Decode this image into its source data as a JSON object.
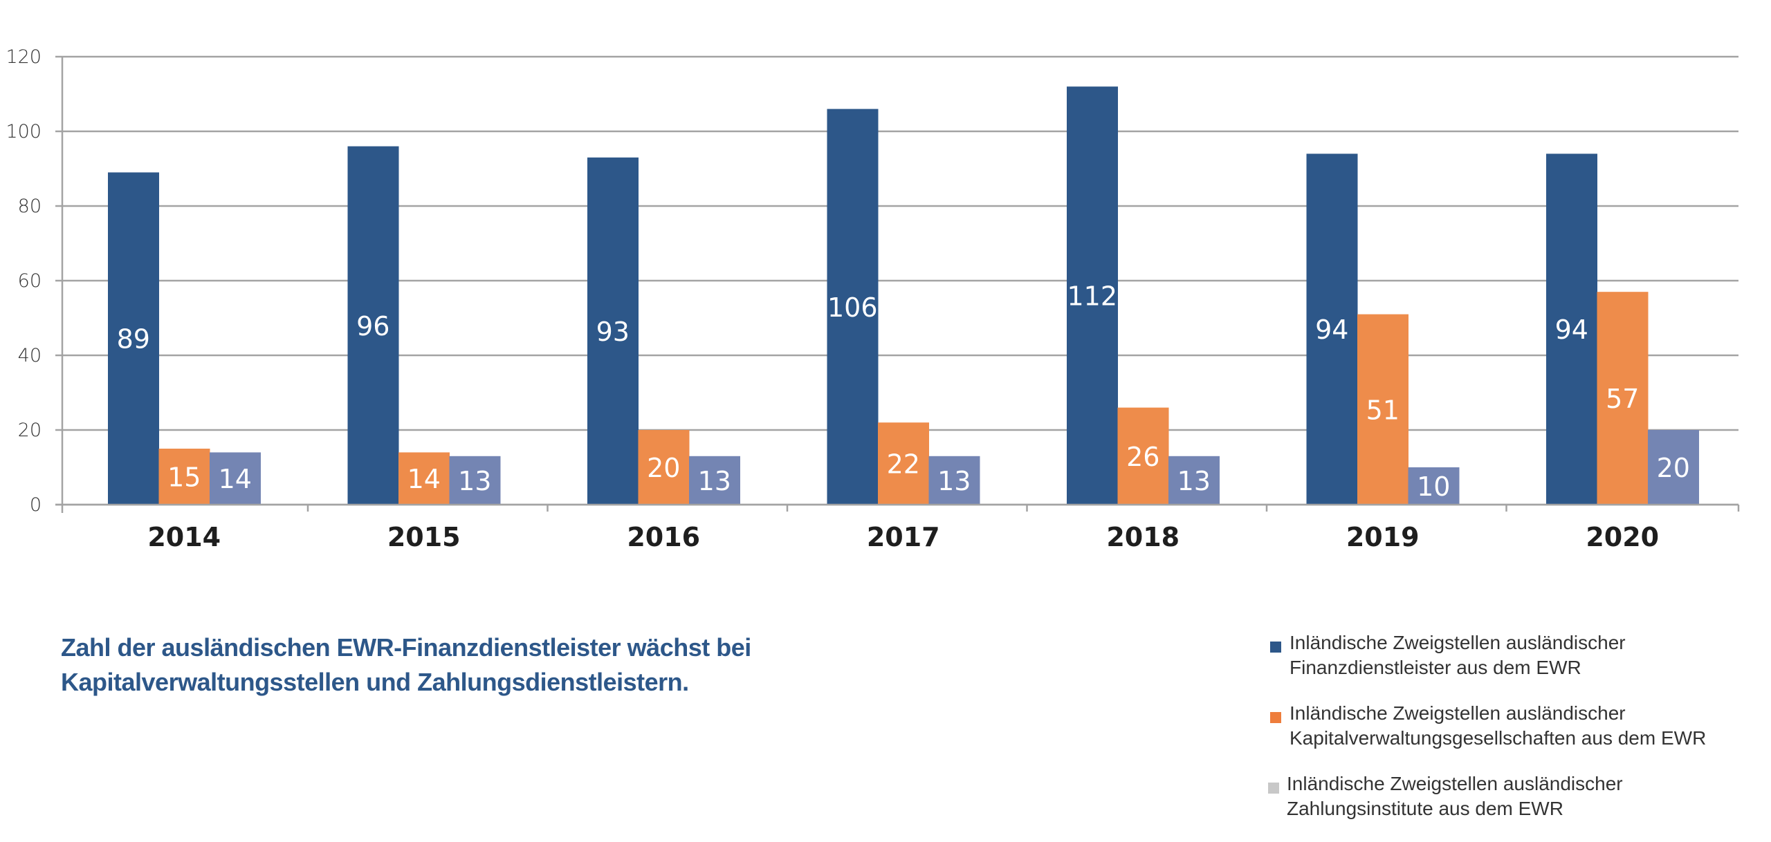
{
  "chart_data": {
    "type": "bar",
    "title": "",
    "xlabel": "",
    "ylabel": "",
    "ylim": [
      0,
      120
    ],
    "yticks": [
      0,
      20,
      40,
      60,
      80,
      100,
      120
    ],
    "grid": true,
    "legend_position": "bottom-right",
    "categories": [
      "2014",
      "2015",
      "2016",
      "2017",
      "2018",
      "2019",
      "2020"
    ],
    "series": [
      {
        "name": "Inländische Zweigstellen ausländischer Finanzdienstleister aus dem EWR",
        "legend_lines": [
          "Inländische Zweigstellen ausländischer",
          "Finanzdienstleister aus dem EWR"
        ],
        "color": "#2d5789",
        "legend_color": "#2d5789",
        "values": [
          89,
          96,
          93,
          106,
          112,
          94,
          94
        ]
      },
      {
        "name": "Inländische Zweigstellen ausländischer Kapitalverwaltungsgesellschaften aus dem EWR",
        "legend_lines": [
          "Inländische Zweigstellen ausländischer",
          "Kapitalverwaltungsgesellschaften aus dem EWR"
        ],
        "color": "#ee8c4b",
        "legend_color": "#ee7d3c",
        "values": [
          15,
          14,
          20,
          22,
          26,
          51,
          57
        ]
      },
      {
        "name": "Inländische Zweigstellen ausländischer Zahlungsinstitute aus dem EWR",
        "legend_lines": [
          "Inländische Zweigstellen ausländischer",
          "Zahlungsinstitute aus dem EWR"
        ],
        "color": "#7485b3",
        "legend_color": "#c8c8c8",
        "values": [
          14,
          13,
          13,
          13,
          13,
          10,
          20
        ]
      }
    ]
  },
  "caption": {
    "lines": [
      "Zahl der ausländischen EWR-Finanzdienstleister wächst bei",
      "Kapitalverwaltungsstellen und Zahlungsdienstleistern."
    ]
  },
  "colors": {
    "grid": "#a3a3a3",
    "axis": "#a3a3a3",
    "caption": "#2d5789"
  }
}
